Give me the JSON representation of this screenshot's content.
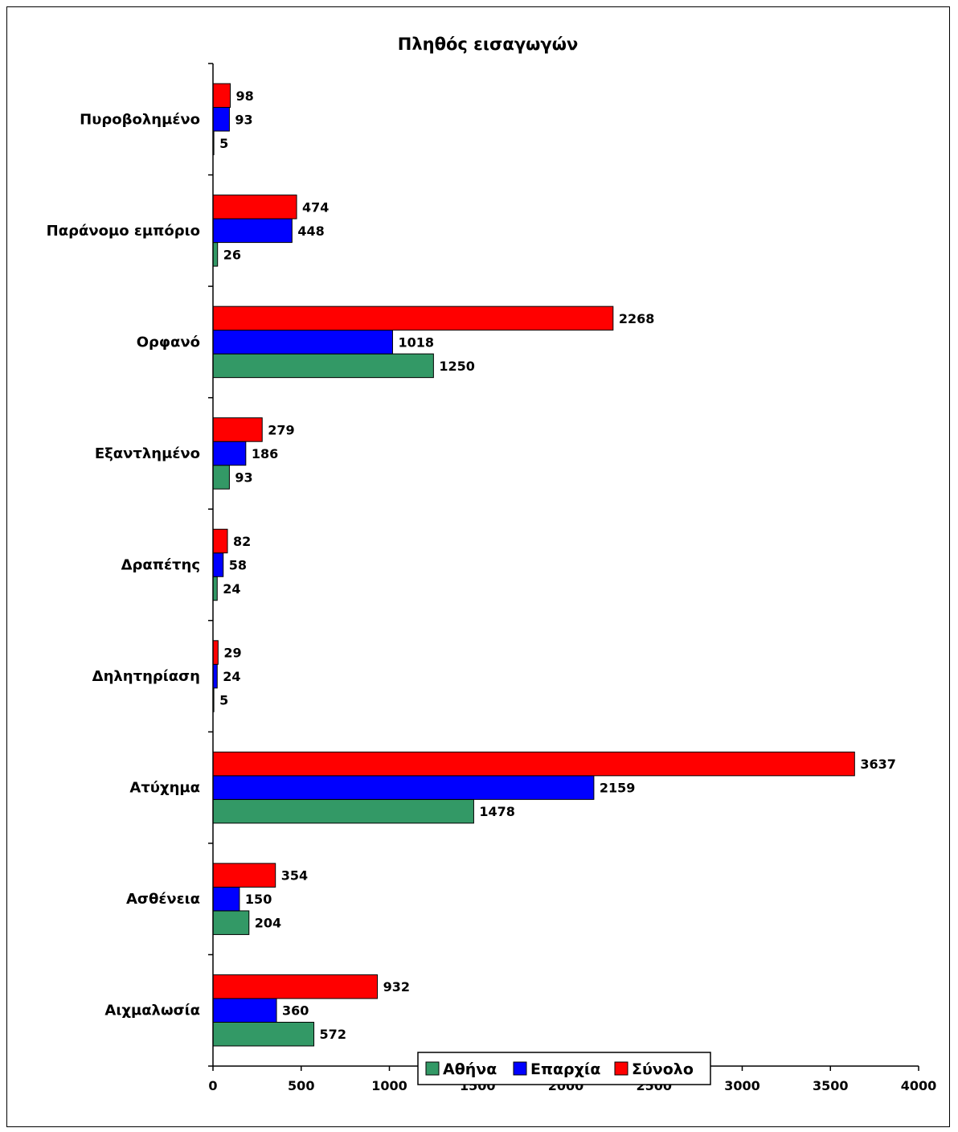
{
  "chart_data": {
    "type": "bar",
    "orientation": "horizontal",
    "title": "Πληθός εισαγωγών",
    "categories": [
      "Αιχμαλωσία",
      "Ασθένεια",
      "Ατύχημα",
      "Δηλητηρίαση",
      "Δραπέτης",
      "Εξαντλημένο",
      "Ορφανό",
      "Παράνομο εμπόριο",
      "Πυροβολημένο"
    ],
    "series": [
      {
        "name": "Αθήνα",
        "color": "#339966",
        "values": [
          572,
          204,
          1478,
          5,
          24,
          93,
          1250,
          26,
          5
        ]
      },
      {
        "name": "Επαρχία",
        "color": "#0000ff",
        "values": [
          360,
          150,
          2159,
          24,
          58,
          186,
          1018,
          448,
          93
        ]
      },
      {
        "name": "Σύνολο",
        "color": "#ff0000",
        "values": [
          932,
          354,
          3637,
          29,
          82,
          279,
          2268,
          474,
          98
        ]
      }
    ],
    "xlim": [
      0,
      4000
    ],
    "xticks": [
      0,
      500,
      1000,
      1500,
      2000,
      2500,
      3000,
      3500,
      4000
    ],
    "grid": false,
    "legend_position": "bottom"
  }
}
